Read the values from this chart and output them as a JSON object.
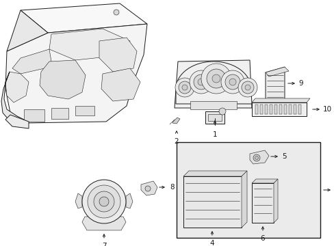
{
  "bg_color": "#ffffff",
  "line_color": "#1a1a1a",
  "fill_light": "#f2f2f2",
  "fill_mid": "#e0e0e0",
  "fill_dark": "#c8c8c8",
  "label_fs": 7.5,
  "lw_main": 0.7,
  "lw_thin": 0.4,
  "fig_w": 4.89,
  "fig_h": 3.6,
  "dpi": 100
}
